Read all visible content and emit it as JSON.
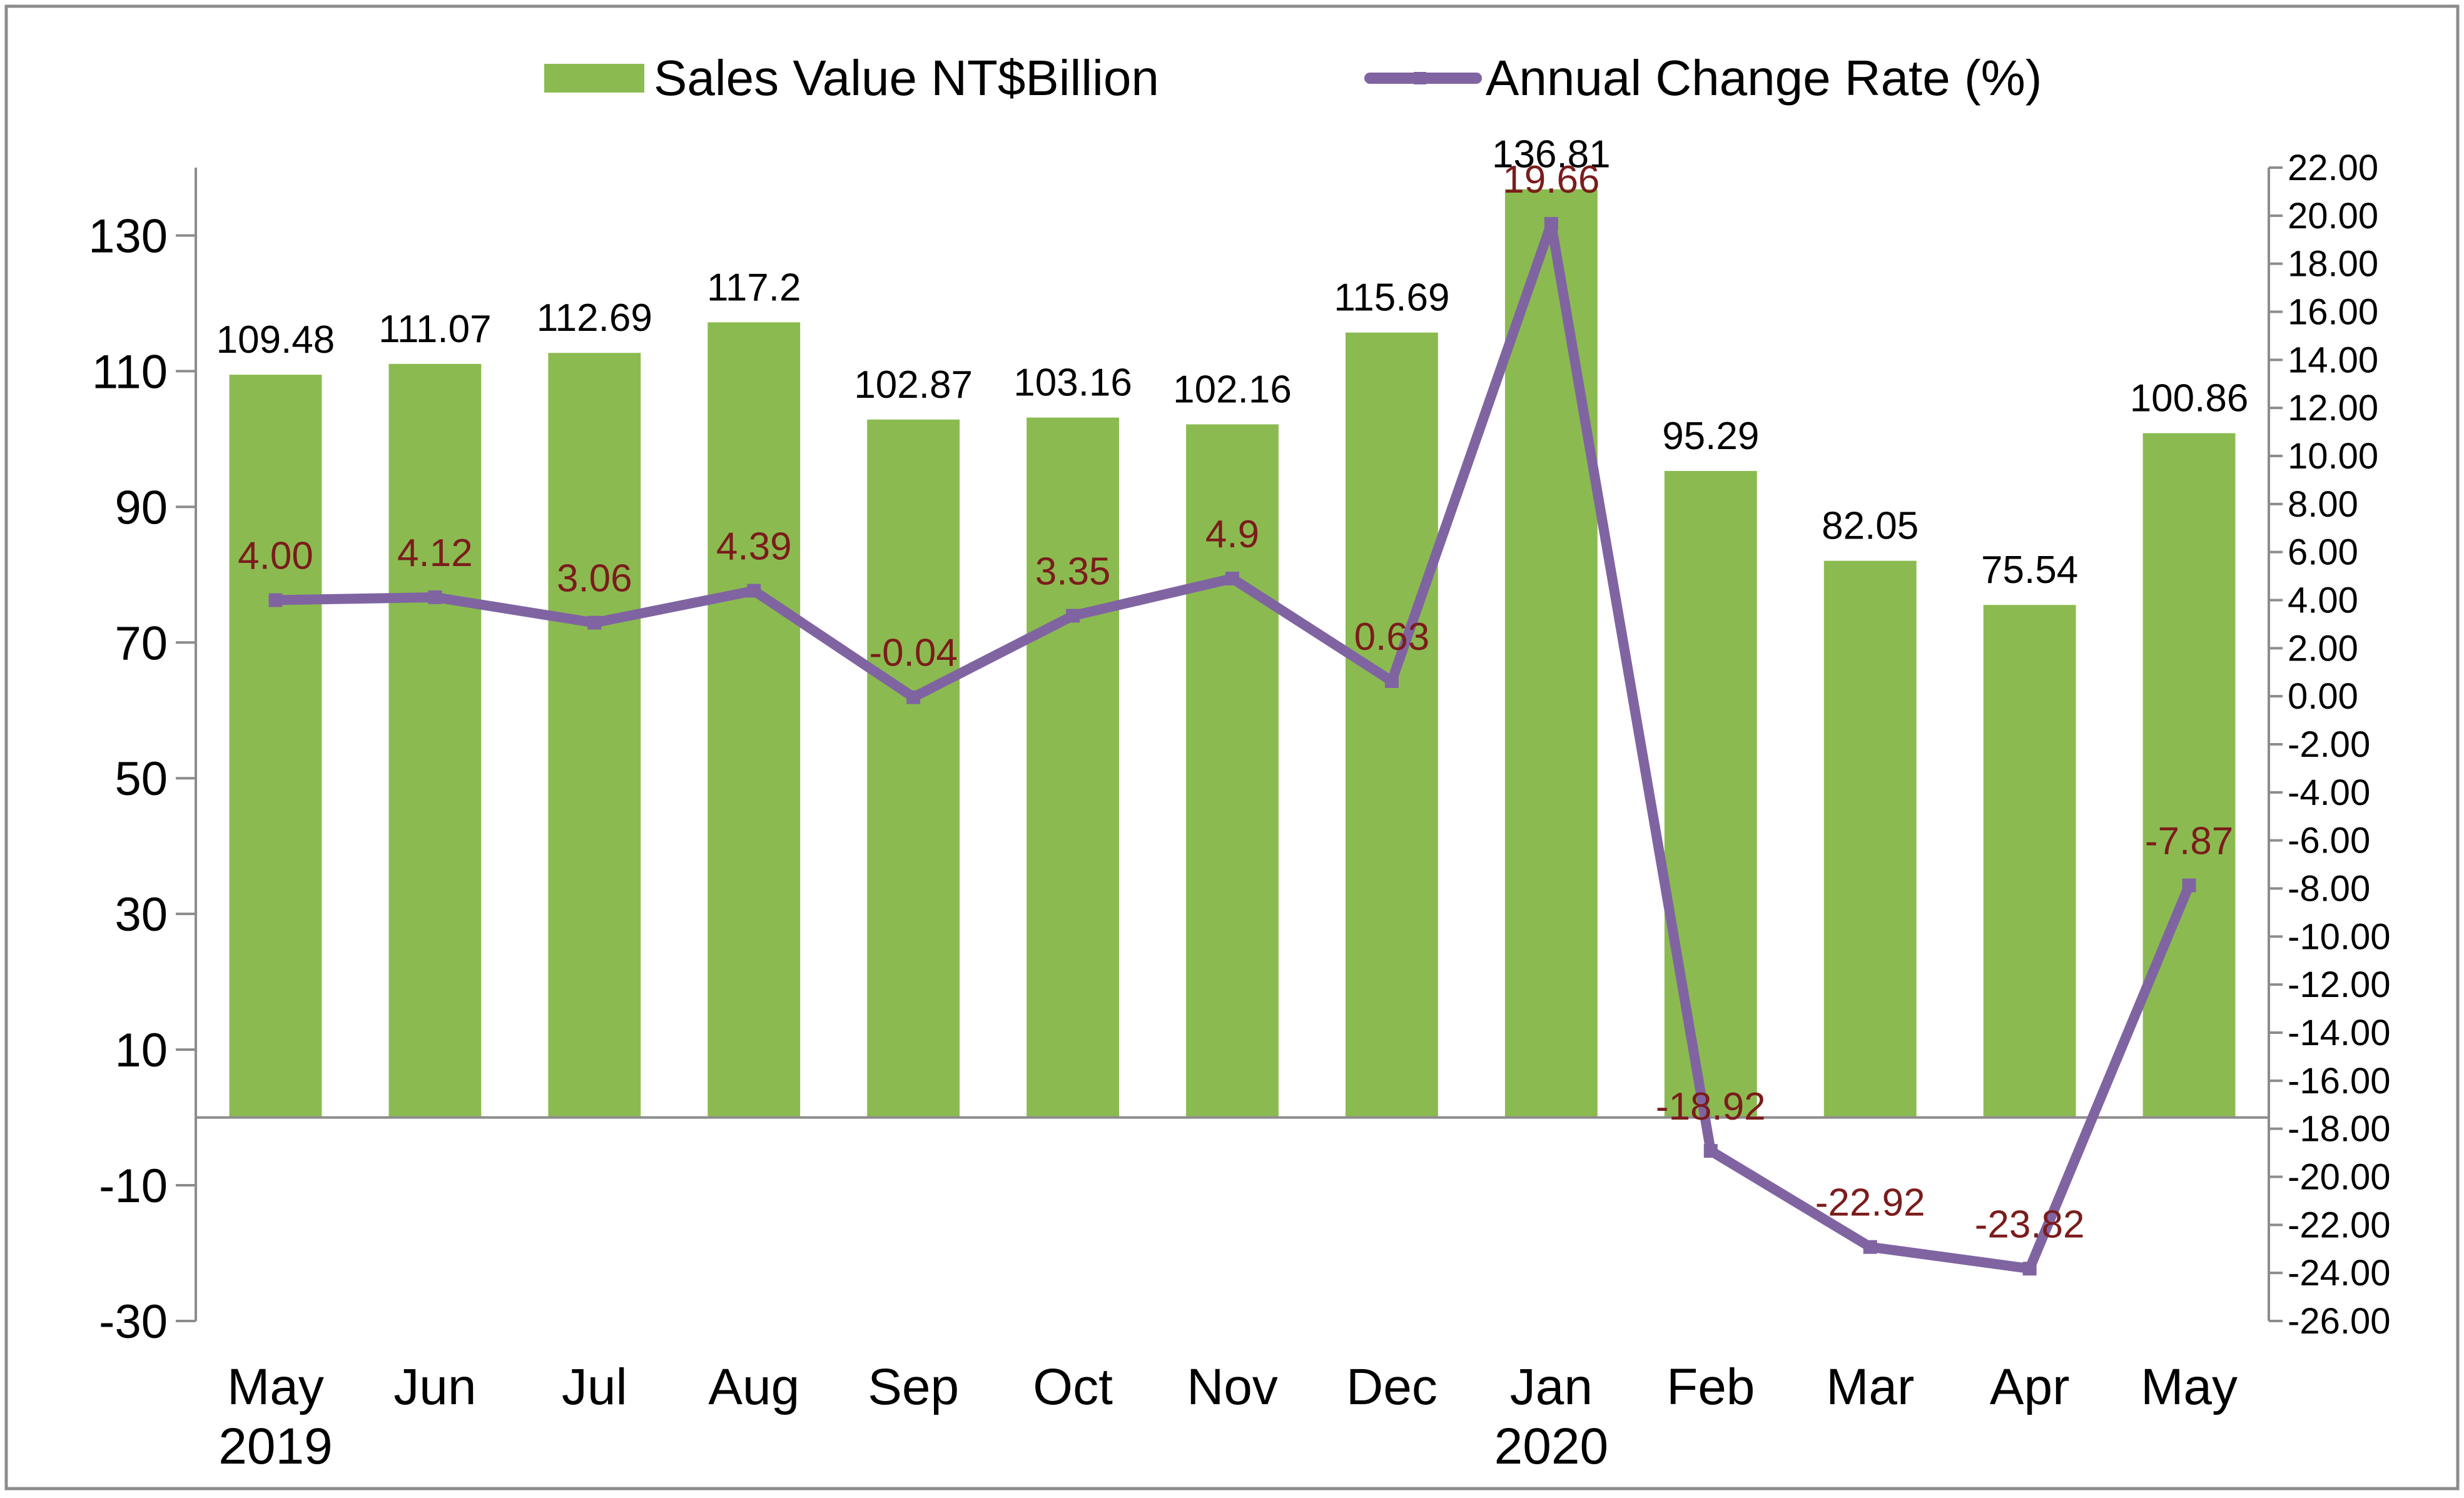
{
  "chart_data": {
    "type": "bar+line",
    "legend": {
      "bar_label": "Sales Value NT$Billion",
      "line_label": "Annual Change Rate (%)",
      "placement": "top-center"
    },
    "categories": [
      "May",
      "Jun",
      "Jul",
      "Aug",
      "Sep",
      "Oct",
      "Nov",
      "Dec",
      "Jan",
      "Feb",
      "Mar",
      "Apr",
      "May"
    ],
    "year_labels": [
      {
        "category_index": 0,
        "label": "2019"
      },
      {
        "category_index": 8,
        "label": "2020"
      }
    ],
    "series": [
      {
        "name": "Sales Value NT$Billion",
        "type": "bar",
        "axis": "left",
        "color": "#8bbb50",
        "values": [
          109.48,
          111.07,
          112.69,
          117.2,
          102.87,
          103.16,
          102.16,
          115.69,
          136.81,
          95.29,
          82.05,
          75.54,
          100.86
        ],
        "labels": [
          "109.48",
          "111.07",
          "112.69",
          "117.2",
          "102.87",
          "103.16",
          "102.16",
          "115.69",
          "136.81",
          "95.29",
          "82.05",
          "75.54",
          "100.86"
        ],
        "label_color": "#000000"
      },
      {
        "name": "Annual Change Rate (%)",
        "type": "line",
        "axis": "right",
        "color": "#8064a2",
        "values": [
          4.0,
          4.12,
          3.06,
          4.39,
          -0.04,
          3.35,
          4.9,
          0.63,
          19.66,
          -18.92,
          -22.92,
          -23.82,
          -7.87
        ],
        "labels": [
          "4.00",
          "4.12",
          "3.06",
          "4.39",
          "-0.04",
          "3.35",
          "4.9",
          "0.63",
          "19.66",
          "-18.92",
          "-22.92",
          "-23.82",
          "-7.87"
        ],
        "label_color": "#7b1c1c"
      }
    ],
    "left_axis": {
      "min": -30,
      "max": 140,
      "ticks": [
        -30,
        -10,
        10,
        30,
        50,
        70,
        90,
        110,
        130
      ],
      "tick_labels": [
        "-30",
        "-10",
        "10",
        "30",
        "50",
        "70",
        "90",
        "110",
        "130"
      ]
    },
    "right_axis": {
      "min": -26,
      "max": 22,
      "ticks": [
        22,
        20,
        18,
        16,
        14,
        12,
        10,
        8,
        6,
        4,
        2,
        0,
        -2,
        -4,
        -6,
        -8,
        -10,
        -12,
        -14,
        -16,
        -18,
        -20,
        -22,
        -24,
        -26
      ],
      "tick_labels": [
        "22.00",
        "20.00",
        "18.00",
        "16.00",
        "14.00",
        "12.00",
        "10.00",
        "8.00",
        "6.00",
        "4.00",
        "2.00",
        "0.00",
        "-2.00",
        "-4.00",
        "-6.00",
        "-8.00",
        "-10.00",
        "-12.00",
        "-14.00",
        "-16.00",
        "-18.00",
        "-20.00",
        "-22.00",
        "-24.00",
        "-26.00"
      ]
    },
    "grid": false
  }
}
